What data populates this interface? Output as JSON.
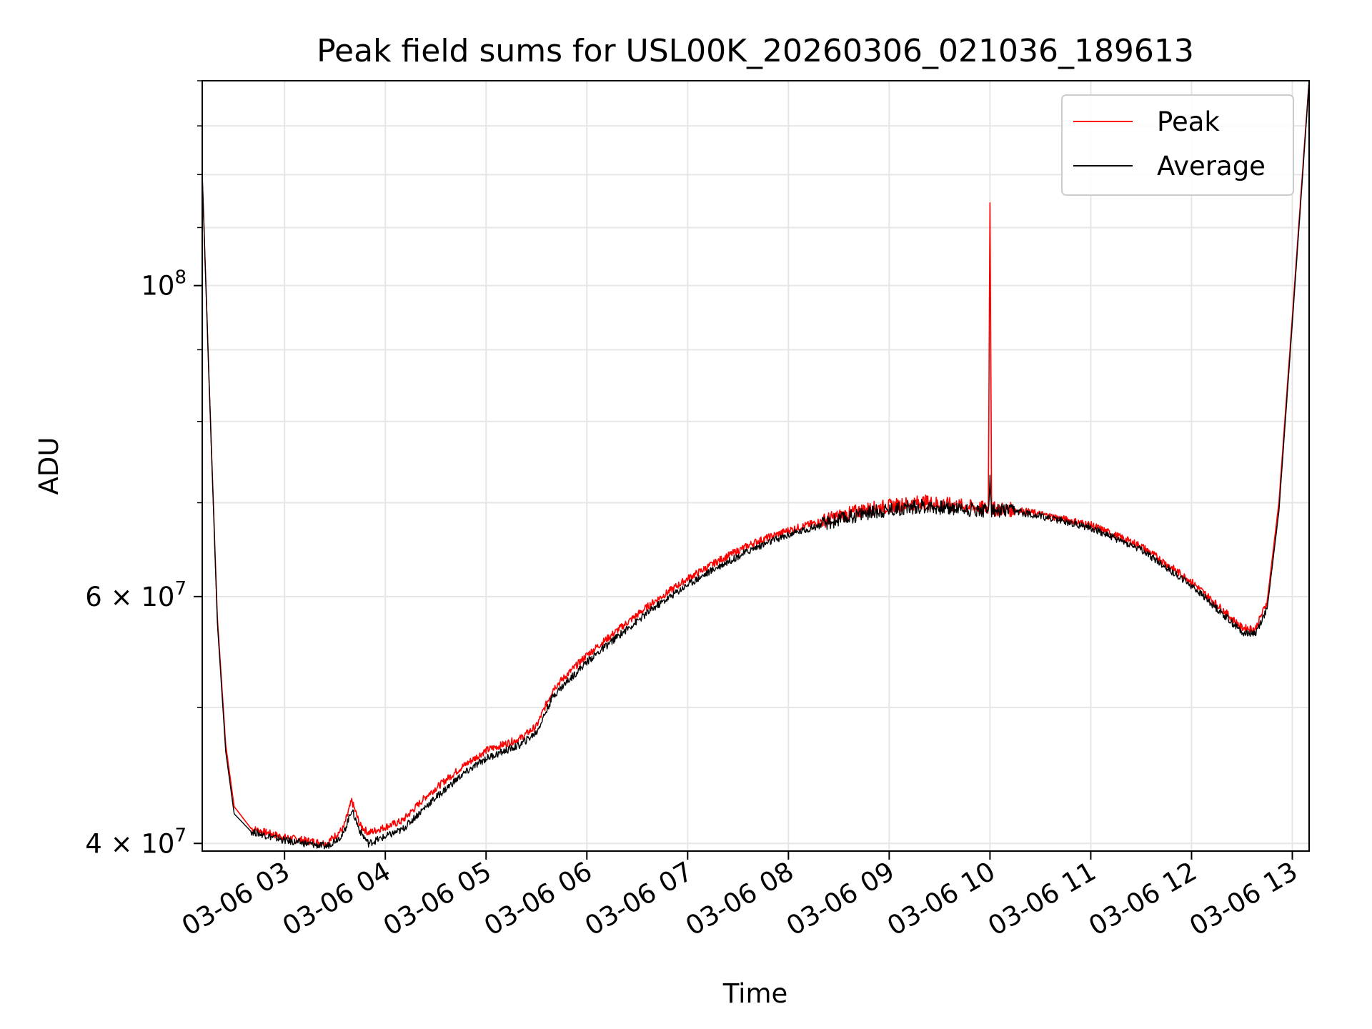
{
  "chart_data": {
    "type": "line",
    "title": "Peak field sums for USL00K_20260306_021036_189613",
    "xlabel": "Time",
    "ylabel": "ADU",
    "yscale": "log",
    "grid": true,
    "legend_position": "top-right",
    "xlim": [
      "2026-03-06 02:11",
      "2026-03-06 13:10"
    ],
    "ylim": [
      39500000,
      140000000
    ],
    "x_ticks": [
      "03-06 03",
      "03-06 04",
      "03-06 05",
      "03-06 06",
      "03-06 07",
      "03-06 08",
      "03-06 09",
      "03-06 10",
      "03-06 11",
      "03-06 12",
      "03-06 13"
    ],
    "y_ticks": [
      {
        "value": 40000000,
        "label": "4 × 10",
        "exp": "7"
      },
      {
        "value": 60000000,
        "label": "6 × 10",
        "exp": "7"
      },
      {
        "value": 100000000,
        "label": "10",
        "exp": "8"
      }
    ],
    "series": [
      {
        "name": "Peak",
        "color": "#ff0000",
        "points": [
          [
            "2026-03-06 02:11",
            120000000
          ],
          [
            "2026-03-06 02:15",
            86000000
          ],
          [
            "2026-03-06 02:20",
            58000000
          ],
          [
            "2026-03-06 02:25",
            47000000
          ],
          [
            "2026-03-06 02:30",
            42500000
          ],
          [
            "2026-03-06 02:40",
            41000000
          ],
          [
            "2026-03-06 03:00",
            40400000
          ],
          [
            "2026-03-06 03:25",
            40000000
          ],
          [
            "2026-03-06 03:35",
            41000000
          ],
          [
            "2026-03-06 03:40",
            42900000
          ],
          [
            "2026-03-06 03:45",
            41200000
          ],
          [
            "2026-03-06 03:50",
            40700000
          ],
          [
            "2026-03-06 04:10",
            41500000
          ],
          [
            "2026-03-06 04:25",
            43300000
          ],
          [
            "2026-03-06 04:45",
            45300000
          ],
          [
            "2026-03-06 05:00",
            46600000
          ],
          [
            "2026-03-06 05:20",
            47500000
          ],
          [
            "2026-03-06 05:30",
            48500000
          ],
          [
            "2026-03-06 05:40",
            51600000
          ],
          [
            "2026-03-06 06:00",
            54500000
          ],
          [
            "2026-03-06 06:20",
            57000000
          ],
          [
            "2026-03-06 06:40",
            59500000
          ],
          [
            "2026-03-06 07:00",
            61800000
          ],
          [
            "2026-03-06 07:20",
            63800000
          ],
          [
            "2026-03-06 07:40",
            65600000
          ],
          [
            "2026-03-06 08:00",
            66900000
          ],
          [
            "2026-03-06 08:25",
            68200000
          ],
          [
            "2026-03-06 08:45",
            69200000
          ],
          [
            "2026-03-06 09:00",
            69600000
          ],
          [
            "2026-03-06 09:20",
            70100000
          ],
          [
            "2026-03-06 09:45",
            69600000
          ],
          [
            "2026-03-06 09:59",
            69300000
          ],
          [
            "2026-03-06 10:00",
            115000000
          ],
          [
            "2026-03-06 10:01",
            69300000
          ],
          [
            "2026-03-06 10:15",
            69200000
          ],
          [
            "2026-03-06 10:30",
            68700000
          ],
          [
            "2026-03-06 11:00",
            67500000
          ],
          [
            "2026-03-06 11:30",
            65200000
          ],
          [
            "2026-03-06 12:00",
            61500000
          ],
          [
            "2026-03-06 12:20",
            58500000
          ],
          [
            "2026-03-06 12:30",
            57000000
          ],
          [
            "2026-03-06 12:38",
            56900000
          ],
          [
            "2026-03-06 12:45",
            59500000
          ],
          [
            "2026-03-06 12:52",
            70000000
          ],
          [
            "2026-03-06 13:00",
            95000000
          ],
          [
            "2026-03-06 13:07",
            125000000
          ],
          [
            "2026-03-06 13:10",
            140000000
          ]
        ]
      },
      {
        "name": "Average",
        "color": "#000000",
        "points": [
          [
            "2026-03-06 02:11",
            120000000
          ],
          [
            "2026-03-06 02:15",
            86000000
          ],
          [
            "2026-03-06 02:20",
            57500000
          ],
          [
            "2026-03-06 02:25",
            46500000
          ],
          [
            "2026-03-06 02:30",
            42000000
          ],
          [
            "2026-03-06 02:40",
            40800000
          ],
          [
            "2026-03-06 03:00",
            40200000
          ],
          [
            "2026-03-06 03:25",
            39800000
          ],
          [
            "2026-03-06 03:35",
            40600000
          ],
          [
            "2026-03-06 03:40",
            42300000
          ],
          [
            "2026-03-06 03:45",
            40800000
          ],
          [
            "2026-03-06 03:50",
            40000000
          ],
          [
            "2026-03-06 04:10",
            40900000
          ],
          [
            "2026-03-06 04:25",
            42600000
          ],
          [
            "2026-03-06 04:45",
            44700000
          ],
          [
            "2026-03-06 05:00",
            46000000
          ],
          [
            "2026-03-06 05:20",
            47000000
          ],
          [
            "2026-03-06 05:30",
            48000000
          ],
          [
            "2026-03-06 05:40",
            51000000
          ],
          [
            "2026-03-06 06:00",
            53900000
          ],
          [
            "2026-03-06 06:20",
            56400000
          ],
          [
            "2026-03-06 06:40",
            58900000
          ],
          [
            "2026-03-06 07:00",
            61200000
          ],
          [
            "2026-03-06 07:20",
            63200000
          ],
          [
            "2026-03-06 07:40",
            65000000
          ],
          [
            "2026-03-06 08:00",
            66400000
          ],
          [
            "2026-03-06 08:25",
            67800000
          ],
          [
            "2026-03-06 08:45",
            68800000
          ],
          [
            "2026-03-06 09:00",
            69200000
          ],
          [
            "2026-03-06 09:20",
            69600000
          ],
          [
            "2026-03-06 09:45",
            69300000
          ],
          [
            "2026-03-06 09:59",
            69100000
          ],
          [
            "2026-03-06 10:00",
            73000000
          ],
          [
            "2026-03-06 10:01",
            69100000
          ],
          [
            "2026-03-06 10:15",
            69000000
          ],
          [
            "2026-03-06 10:30",
            68500000
          ],
          [
            "2026-03-06 11:00",
            67200000
          ],
          [
            "2026-03-06 11:30",
            64800000
          ],
          [
            "2026-03-06 12:00",
            61100000
          ],
          [
            "2026-03-06 12:20",
            58100000
          ],
          [
            "2026-03-06 12:30",
            56600000
          ],
          [
            "2026-03-06 12:38",
            56500000
          ],
          [
            "2026-03-06 12:45",
            58800000
          ],
          [
            "2026-03-06 12:52",
            69000000
          ],
          [
            "2026-03-06 13:00",
            94000000
          ],
          [
            "2026-03-06 13:07",
            124000000
          ],
          [
            "2026-03-06 13:10",
            140000000
          ]
        ]
      }
    ]
  }
}
